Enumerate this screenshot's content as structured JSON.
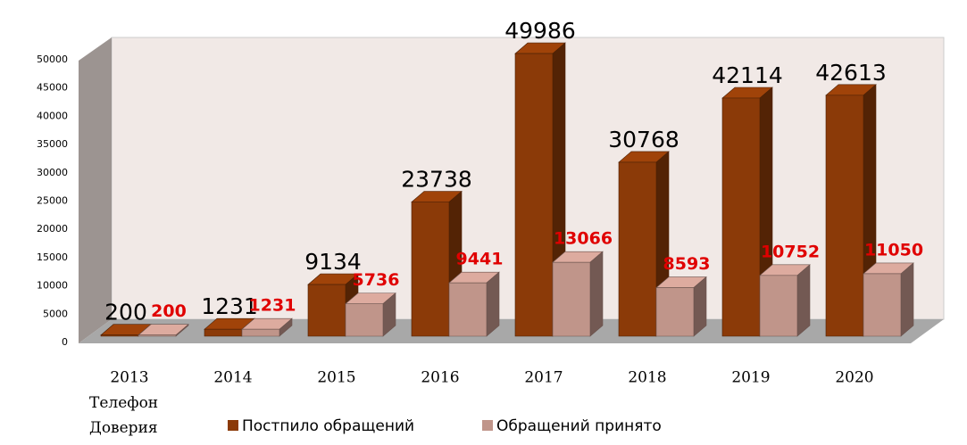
{
  "chart_data": {
    "type": "bar3d",
    "categories": [
      "2013",
      "2014",
      "2015",
      "2016",
      "2017",
      "2018",
      "2019",
      "2020"
    ],
    "x_label": "Телефон Доверия",
    "series": [
      {
        "name": "Постпило обращений",
        "color": "#8b3a08",
        "label_color": "#000000",
        "values": [
          200,
          1231,
          9134,
          23738,
          49986,
          30768,
          42114,
          42613
        ]
      },
      {
        "name": "Обращений принято",
        "color": "#c0958a",
        "label_color": "#e00000",
        "values": [
          200,
          1231,
          5736,
          9441,
          13066,
          8593,
          10752,
          11050
        ]
      }
    ],
    "ylim": [
      0,
      50000
    ],
    "yticks": [
      0,
      5000,
      10000,
      15000,
      20000,
      25000,
      30000,
      35000,
      40000,
      45000,
      50000
    ],
    "grid": false
  }
}
